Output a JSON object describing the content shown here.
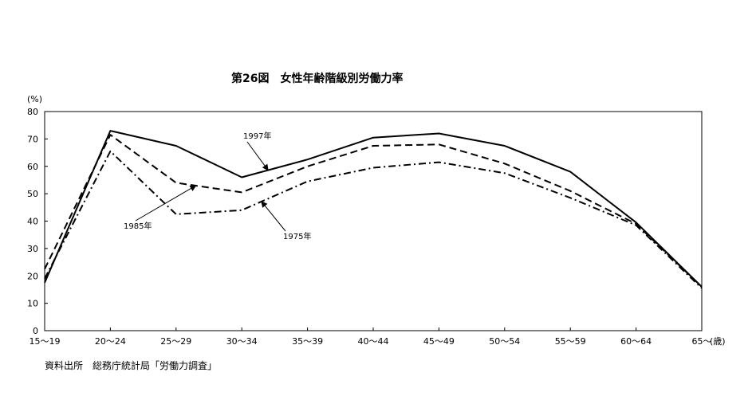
{
  "chart_data": {
    "type": "line",
    "title": "第26図　女性年齢階級別労働力率",
    "ylabel": "(%)",
    "xunit": "(歳)",
    "ylim": [
      0,
      80
    ],
    "yticks": [
      0,
      10,
      20,
      30,
      40,
      50,
      60,
      70,
      80
    ],
    "categories": [
      "15～19",
      "20～24",
      "25～29",
      "30～34",
      "35～39",
      "40～44",
      "45～49",
      "50～54",
      "55～59",
      "60～64",
      "65～"
    ],
    "series": [
      {
        "name": "1997年",
        "style": "solid",
        "values": [
          17.5,
          73.0,
          67.5,
          56.0,
          62.5,
          70.5,
          72.0,
          67.5,
          58.0,
          39.5,
          16.0
        ]
      },
      {
        "name": "1985年",
        "style": "dashed",
        "values": [
          22.5,
          71.5,
          54.0,
          50.5,
          60.0,
          67.5,
          68.0,
          61.0,
          51.0,
          39.0,
          16.0
        ]
      },
      {
        "name": "1975年",
        "style": "dashdot",
        "values": [
          19.0,
          65.5,
          42.5,
          44.0,
          54.5,
          59.5,
          61.5,
          57.5,
          48.5,
          38.5,
          15.5
        ]
      }
    ],
    "grid": false,
    "source": "資料出所　総務庁統計局「労働力調査」"
  }
}
